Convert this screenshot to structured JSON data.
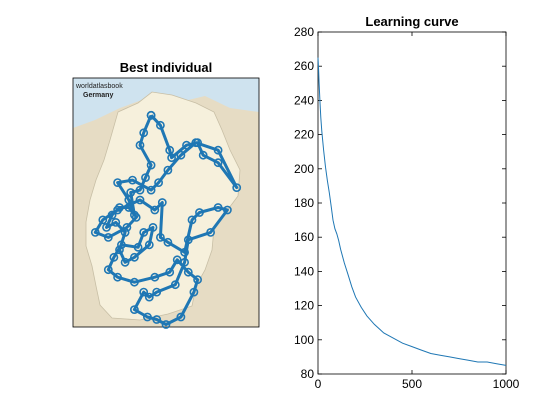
{
  "chart_data": [
    {
      "type": "scatter",
      "title": "Best individual",
      "map_labels": {
        "brand": "worldatlasbook",
        "country": "Germany"
      },
      "colors": {
        "route": "#1f77b4",
        "land": "#f6f0dc",
        "neighbors": "#e6dcc4",
        "sea": "#cfe3ef"
      },
      "route": [
        [
          0.42,
          0.15
        ],
        [
          0.47,
          0.19
        ],
        [
          0.52,
          0.29
        ],
        [
          0.53,
          0.32
        ],
        [
          0.61,
          0.27
        ],
        [
          0.67,
          0.26
        ],
        [
          0.7,
          0.31
        ],
        [
          0.78,
          0.34
        ],
        [
          0.88,
          0.44
        ],
        [
          0.78,
          0.29
        ],
        [
          0.66,
          0.26
        ],
        [
          0.58,
          0.31
        ],
        [
          0.51,
          0.37
        ],
        [
          0.46,
          0.42
        ],
        [
          0.42,
          0.45
        ],
        [
          0.32,
          0.41
        ],
        [
          0.24,
          0.42
        ],
        [
          0.3,
          0.49
        ],
        [
          0.34,
          0.56
        ],
        [
          0.29,
          0.6
        ],
        [
          0.19,
          0.64
        ],
        [
          0.12,
          0.62
        ],
        [
          0.16,
          0.57
        ],
        [
          0.24,
          0.53
        ],
        [
          0.36,
          0.49
        ],
        [
          0.44,
          0.53
        ],
        [
          0.48,
          0.5
        ],
        [
          0.47,
          0.64
        ],
        [
          0.51,
          0.66
        ],
        [
          0.6,
          0.7
        ],
        [
          0.64,
          0.57
        ],
        [
          0.68,
          0.54
        ],
        [
          0.78,
          0.52
        ],
        [
          0.83,
          0.53
        ],
        [
          0.74,
          0.62
        ],
        [
          0.62,
          0.65
        ],
        [
          0.6,
          0.74
        ],
        [
          0.55,
          0.83
        ],
        [
          0.45,
          0.86
        ],
        [
          0.41,
          0.88
        ],
        [
          0.38,
          0.86
        ],
        [
          0.33,
          0.93
        ],
        [
          0.4,
          0.96
        ],
        [
          0.45,
          0.97
        ],
        [
          0.5,
          0.99
        ],
        [
          0.58,
          0.96
        ],
        [
          0.65,
          0.86
        ],
        [
          0.67,
          0.81
        ],
        [
          0.62,
          0.78
        ],
        [
          0.56,
          0.73
        ],
        [
          0.52,
          0.78
        ],
        [
          0.44,
          0.8
        ],
        [
          0.33,
          0.82
        ],
        [
          0.24,
          0.8
        ],
        [
          0.19,
          0.77
        ],
        [
          0.22,
          0.72
        ],
        [
          0.26,
          0.67
        ],
        [
          0.35,
          0.68
        ],
        [
          0.38,
          0.62
        ],
        [
          0.43,
          0.6
        ],
        [
          0.41,
          0.67
        ],
        [
          0.33,
          0.72
        ],
        [
          0.28,
          0.74
        ],
        [
          0.25,
          0.69
        ],
        [
          0.28,
          0.62
        ],
        [
          0.23,
          0.58
        ],
        [
          0.18,
          0.6
        ],
        [
          0.21,
          0.55
        ],
        [
          0.25,
          0.52
        ],
        [
          0.3,
          0.52
        ],
        [
          0.33,
          0.55
        ],
        [
          0.31,
          0.46
        ],
        [
          0.36,
          0.45
        ],
        [
          0.39,
          0.4
        ],
        [
          0.42,
          0.35
        ],
        [
          0.36,
          0.27
        ],
        [
          0.38,
          0.22
        ],
        [
          0.42,
          0.15
        ]
      ]
    },
    {
      "type": "line",
      "title": "Learning curve",
      "xlim": [
        0,
        1000
      ],
      "ylim": [
        80,
        280
      ],
      "xticks": [
        0,
        500,
        1000
      ],
      "yticks": [
        80,
        100,
        120,
        140,
        160,
        180,
        200,
        220,
        240,
        260,
        280
      ],
      "series": [
        {
          "color": "#1f77b4",
          "x": [
            0,
            3,
            6,
            10,
            15,
            20,
            30,
            40,
            50,
            60,
            70,
            80,
            90,
            100,
            110,
            120,
            140,
            160,
            180,
            200,
            230,
            260,
            300,
            350,
            400,
            450,
            500,
            550,
            600,
            650,
            700,
            750,
            800,
            850,
            900,
            950,
            1000
          ],
          "y": [
            265,
            258,
            250,
            240,
            230,
            222,
            211,
            201,
            193,
            186,
            178,
            170,
            165,
            162,
            158,
            153,
            145,
            138,
            131,
            125,
            119,
            114,
            109,
            104,
            101,
            98,
            96,
            94,
            92,
            91,
            90,
            89,
            88,
            87,
            87,
            86,
            85
          ]
        }
      ]
    }
  ]
}
